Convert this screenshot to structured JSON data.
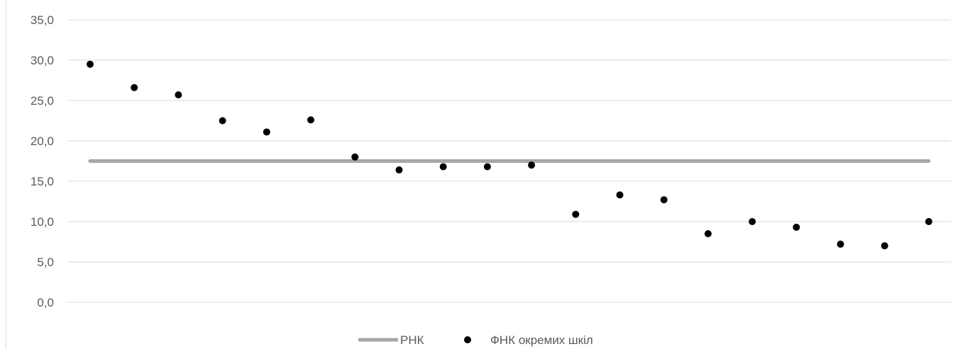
{
  "chart_data": {
    "type": "scatter",
    "title": "",
    "xlabel": "",
    "ylabel": "",
    "ylim": [
      0,
      35
    ],
    "y_ticks": [
      "0,0",
      "5,0",
      "10,0",
      "15,0",
      "20,0",
      "25,0",
      "30,0",
      "35,0"
    ],
    "y_tick_values": [
      0,
      5,
      10,
      15,
      20,
      25,
      30,
      35
    ],
    "grid": true,
    "legend_position": "bottom",
    "x": [
      1,
      2,
      3,
      4,
      5,
      6,
      7,
      8,
      9,
      10,
      11,
      12,
      13,
      14,
      15,
      16,
      17,
      18,
      19,
      20
    ],
    "series": [
      {
        "name": "РНК",
        "kind": "line",
        "color": "#a6a6a6",
        "values": [
          17.5,
          17.5,
          17.5,
          17.5,
          17.5,
          17.5,
          17.5,
          17.5,
          17.5,
          17.5,
          17.5,
          17.5,
          17.5,
          17.5,
          17.5,
          17.5,
          17.5,
          17.5,
          17.5,
          17.5
        ]
      },
      {
        "name": "ФНК окремих шкіл",
        "kind": "scatter",
        "color": "#000000",
        "values": [
          29.5,
          26.6,
          25.7,
          22.5,
          21.1,
          22.6,
          18.0,
          16.4,
          16.8,
          16.8,
          17.0,
          10.9,
          13.3,
          12.7,
          8.5,
          10.0,
          9.3,
          7.2,
          7.0,
          10.0
        ]
      }
    ]
  }
}
